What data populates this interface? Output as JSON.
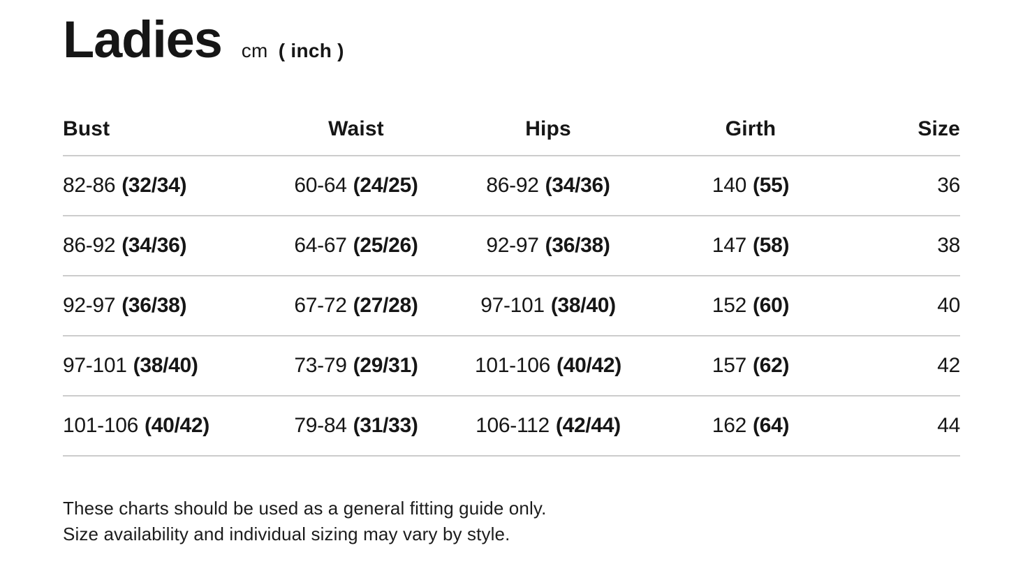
{
  "header": {
    "title": "Ladies",
    "unit_cm": "cm",
    "unit_inch": "( inch )"
  },
  "table": {
    "columns": [
      "Bust",
      "Waist",
      "Hips",
      "Girth",
      "Size"
    ],
    "rows": [
      {
        "bust": {
          "cm": "82-86",
          "inch": "(32/34)"
        },
        "waist": {
          "cm": "60-64",
          "inch": "(24/25)"
        },
        "hips": {
          "cm": "86-92",
          "inch": "(34/36)"
        },
        "girth": {
          "cm": "140",
          "inch": "(55)"
        },
        "size": "36"
      },
      {
        "bust": {
          "cm": "86-92",
          "inch": "(34/36)"
        },
        "waist": {
          "cm": "64-67",
          "inch": "(25/26)"
        },
        "hips": {
          "cm": "92-97",
          "inch": "(36/38)"
        },
        "girth": {
          "cm": "147",
          "inch": "(58)"
        },
        "size": "38"
      },
      {
        "bust": {
          "cm": "92-97",
          "inch": "(36/38)"
        },
        "waist": {
          "cm": "67-72",
          "inch": "(27/28)"
        },
        "hips": {
          "cm": "97-101",
          "inch": "(38/40)"
        },
        "girth": {
          "cm": "152",
          "inch": "(60)"
        },
        "size": "40"
      },
      {
        "bust": {
          "cm": "97-101",
          "inch": "(38/40)"
        },
        "waist": {
          "cm": "73-79",
          "inch": "(29/31)"
        },
        "hips": {
          "cm": "101-106",
          "inch": "(40/42)"
        },
        "girth": {
          "cm": "157",
          "inch": "(62)"
        },
        "size": "42"
      },
      {
        "bust": {
          "cm": "101-106",
          "inch": "(40/42)"
        },
        "waist": {
          "cm": "79-84",
          "inch": "(31/33)"
        },
        "hips": {
          "cm": "106-112",
          "inch": "(42/44)"
        },
        "girth": {
          "cm": "162",
          "inch": "(64)"
        },
        "size": "44"
      }
    ]
  },
  "footer": {
    "line1": "These charts should be used as a general fitting guide only.",
    "line2": "Size availability and individual sizing may vary by style."
  }
}
